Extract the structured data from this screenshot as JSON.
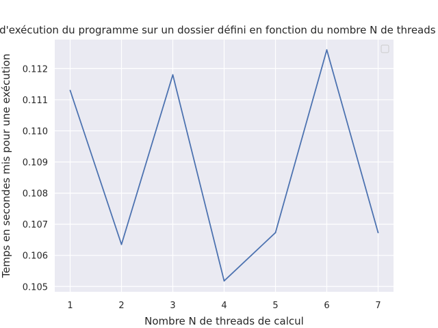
{
  "chart_data": {
    "type": "line",
    "title": "Temps d'exécution du programme sur un dossier défini en fonction du nombre N de threads de calcul",
    "xlabel": "Nombre N de threads de calcul",
    "ylabel": "Temps en secondes mis pour une exécution",
    "x": [
      1,
      2,
      3,
      4,
      5,
      6,
      7
    ],
    "series": [
      {
        "values": [
          0.1113,
          0.10635,
          0.1118,
          0.10518,
          0.10673,
          0.1126,
          0.10673
        ],
        "color": "#4c72b0"
      }
    ],
    "xlim": [
      0.7,
      7.3
    ],
    "ylim": [
      0.10483,
      0.11293
    ],
    "xticks": [
      "1",
      "2",
      "3",
      "4",
      "5",
      "6",
      "7"
    ],
    "yticks": [
      "0.105",
      "0.106",
      "0.107",
      "0.108",
      "0.109",
      "0.110",
      "0.111",
      "0.112"
    ],
    "grid": true,
    "legend": "top-right",
    "background": "#eaeaf2",
    "grid_color": "#ffffff"
  }
}
